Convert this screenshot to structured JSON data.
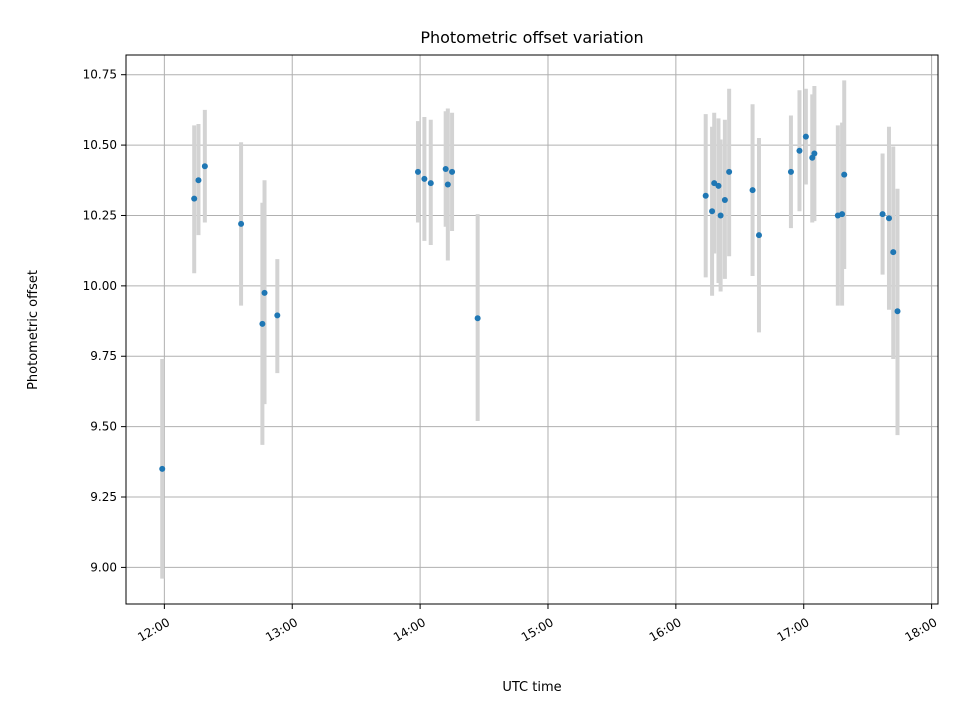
{
  "chart_data": {
    "type": "scatter",
    "title": "Photometric offset variation",
    "xlabel": "UTC time",
    "ylabel": "Photometric offset",
    "xlim": [
      "11:42",
      "18:03"
    ],
    "ylim": [
      8.87,
      10.82
    ],
    "x_ticks": [
      "12:00",
      "13:00",
      "14:00",
      "15:00",
      "16:00",
      "17:00",
      "18:00"
    ],
    "y_ticks": [
      "9.00",
      "9.25",
      "9.50",
      "9.75",
      "10.00",
      "10.25",
      "10.50",
      "10.75"
    ],
    "grid": true,
    "legend": "none",
    "colors": {
      "point": "#1f77b4",
      "error_bar": "#d3d3d3",
      "grid": "#b0b0b0"
    },
    "series": [
      {
        "points": [
          {
            "x": "11:59",
            "y": 9.35,
            "err_low": 8.96,
            "err_high": 9.74
          },
          {
            "x": "12:14",
            "y": 10.31,
            "err_low": 10.045,
            "err_high": 10.57
          },
          {
            "x": "12:16",
            "y": 10.375,
            "err_low": 10.18,
            "err_high": 10.575
          },
          {
            "x": "12:19",
            "y": 10.425,
            "err_low": 10.225,
            "err_high": 10.625
          },
          {
            "x": "12:36",
            "y": 10.22,
            "err_low": 9.93,
            "err_high": 10.51
          },
          {
            "x": "12:46",
            "y": 9.865,
            "err_low": 9.435,
            "err_high": 10.295
          },
          {
            "x": "12:47",
            "y": 9.975,
            "err_low": 9.58,
            "err_high": 10.375
          },
          {
            "x": "12:53",
            "y": 9.895,
            "err_low": 9.69,
            "err_high": 10.095
          },
          {
            "x": "13:59",
            "y": 10.405,
            "err_low": 10.225,
            "err_high": 10.585
          },
          {
            "x": "14:02",
            "y": 10.38,
            "err_low": 10.16,
            "err_high": 10.6
          },
          {
            "x": "14:05",
            "y": 10.365,
            "err_low": 10.145,
            "err_high": 10.59
          },
          {
            "x": "14:12",
            "y": 10.415,
            "err_low": 10.21,
            "err_high": 10.62
          },
          {
            "x": "14:13",
            "y": 10.36,
            "err_low": 10.09,
            "err_high": 10.63
          },
          {
            "x": "14:15",
            "y": 10.405,
            "err_low": 10.195,
            "err_high": 10.615
          },
          {
            "x": "14:27",
            "y": 9.885,
            "err_low": 9.52,
            "err_high": 10.255
          },
          {
            "x": "16:14",
            "y": 10.32,
            "err_low": 10.03,
            "err_high": 10.61
          },
          {
            "x": "16:17",
            "y": 10.265,
            "err_low": 9.965,
            "err_high": 10.565
          },
          {
            "x": "16:18",
            "y": 10.365,
            "err_low": 10.115,
            "err_high": 10.615
          },
          {
            "x": "16:20",
            "y": 10.355,
            "err_low": 10.01,
            "err_high": 10.595
          },
          {
            "x": "16:21",
            "y": 10.25,
            "err_low": 9.98,
            "err_high": 10.52
          },
          {
            "x": "16:23",
            "y": 10.305,
            "err_low": 10.025,
            "err_high": 10.59
          },
          {
            "x": "16:25",
            "y": 10.405,
            "err_low": 10.105,
            "err_high": 10.7
          },
          {
            "x": "16:36",
            "y": 10.34,
            "err_low": 10.035,
            "err_high": 10.645
          },
          {
            "x": "16:39",
            "y": 10.18,
            "err_low": 9.835,
            "err_high": 10.525
          },
          {
            "x": "16:54",
            "y": 10.405,
            "err_low": 10.205,
            "err_high": 10.605
          },
          {
            "x": "16:58",
            "y": 10.48,
            "err_low": 10.265,
            "err_high": 10.695
          },
          {
            "x": "17:01",
            "y": 10.53,
            "err_low": 10.36,
            "err_high": 10.7
          },
          {
            "x": "17:04",
            "y": 10.455,
            "err_low": 10.225,
            "err_high": 10.68
          },
          {
            "x": "17:05",
            "y": 10.47,
            "err_low": 10.23,
            "err_high": 10.71
          },
          {
            "x": "17:16",
            "y": 10.25,
            "err_low": 9.93,
            "err_high": 10.57
          },
          {
            "x": "17:18",
            "y": 10.255,
            "err_low": 9.93,
            "err_high": 10.58
          },
          {
            "x": "17:19",
            "y": 10.395,
            "err_low": 10.06,
            "err_high": 10.73
          },
          {
            "x": "17:37",
            "y": 10.255,
            "err_low": 10.04,
            "err_high": 10.47
          },
          {
            "x": "17:40",
            "y": 10.24,
            "err_low": 9.915,
            "err_high": 10.565
          },
          {
            "x": "17:42",
            "y": 10.12,
            "err_low": 9.74,
            "err_high": 10.495
          },
          {
            "x": "17:44",
            "y": 9.91,
            "err_low": 9.47,
            "err_high": 10.345
          }
        ]
      }
    ]
  }
}
